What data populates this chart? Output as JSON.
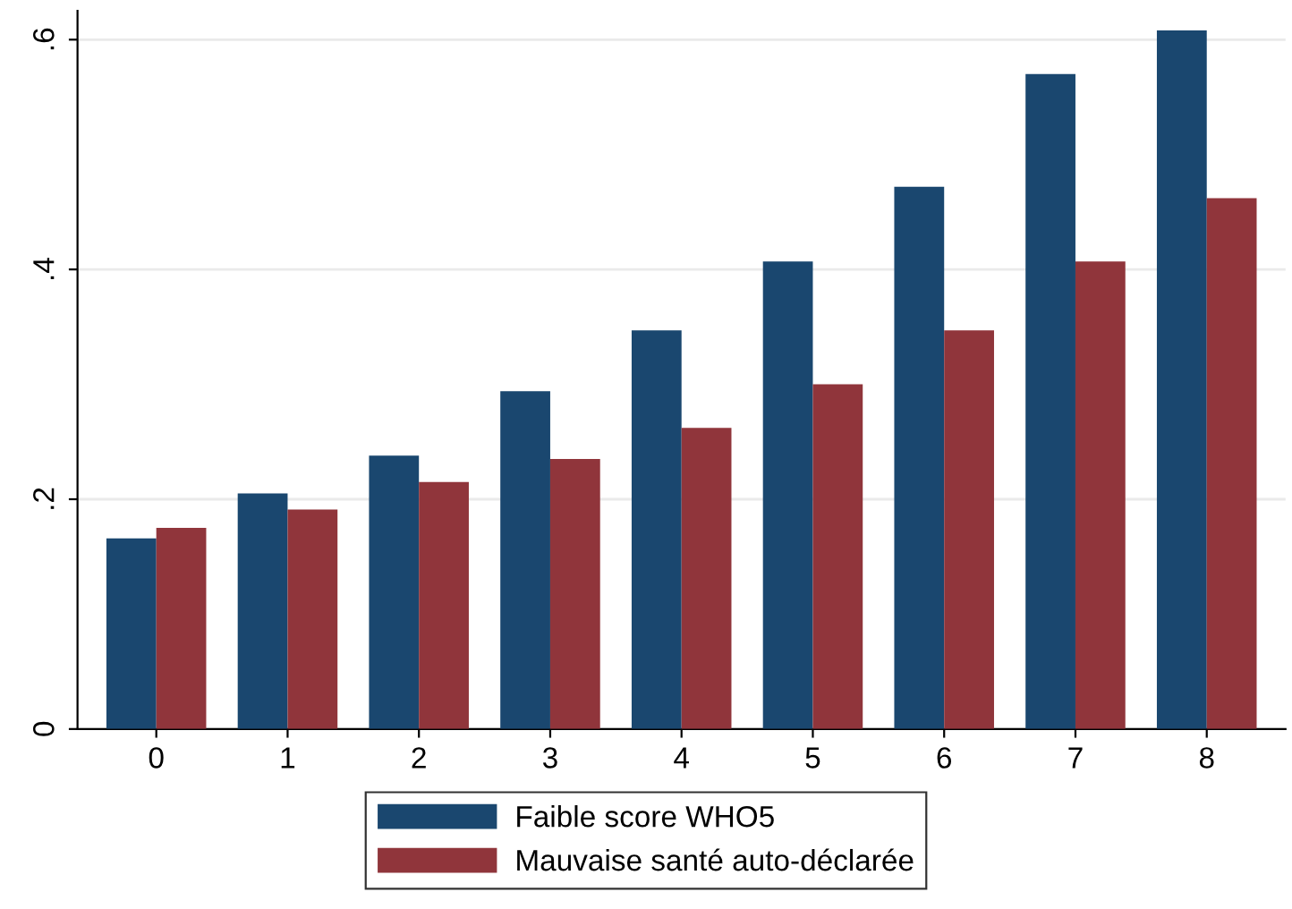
{
  "chart_data": {
    "type": "bar",
    "categories": [
      "0",
      "1",
      "2",
      "3",
      "4",
      "5",
      "6",
      "7",
      "8"
    ],
    "series": [
      {
        "name": "Faible score WHO5",
        "color": "#1a476f",
        "values": [
          0.166,
          0.205,
          0.238,
          0.294,
          0.347,
          0.407,
          0.472,
          0.57,
          0.608
        ]
      },
      {
        "name": "Mauvaise santé auto-déclarée",
        "color": "#90353b",
        "values": [
          0.175,
          0.191,
          0.215,
          0.235,
          0.262,
          0.3,
          0.347,
          0.407,
          0.462
        ]
      }
    ],
    "ylim": [
      0,
      0.625
    ],
    "yticks": [
      0,
      {
        "value": 0.2,
        "label": ".2"
      },
      {
        "value": 0.4,
        "label": ".4"
      },
      {
        "value": 0.6,
        "label": ".6"
      }
    ],
    "grid": "y",
    "legend": "bottom"
  }
}
